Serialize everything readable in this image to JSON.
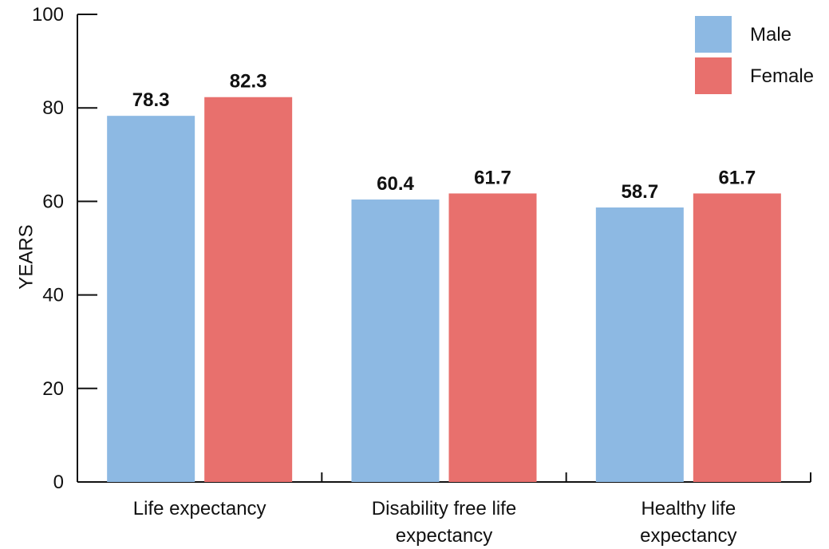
{
  "chart_data": {
    "type": "bar",
    "categories": [
      "Life expectancy",
      "Disability free life expectancy",
      "Healthy life expectancy"
    ],
    "category_labels": [
      [
        "Life expectancy"
      ],
      [
        "Disability free life",
        "expectancy"
      ],
      [
        "Healthy life",
        "expectancy"
      ]
    ],
    "series": [
      {
        "name": "Male",
        "values": [
          78.3,
          60.4,
          58.7
        ],
        "labels": [
          "78.3",
          "60.4",
          "58.7"
        ],
        "color": "#8db9e3"
      },
      {
        "name": "Female",
        "values": [
          82.3,
          61.7,
          61.7
        ],
        "labels": [
          "82.3",
          "61.7",
          "61.7"
        ],
        "color": "#e8706d"
      }
    ],
    "ylabel": "YEARS",
    "ylim": [
      0,
      100
    ],
    "yticks": [
      0,
      20,
      40,
      60,
      80,
      100
    ],
    "ytick_labels": [
      "0",
      "20",
      "40",
      "60",
      "80",
      "100"
    ],
    "grid": false,
    "legend_position": "top-right"
  }
}
